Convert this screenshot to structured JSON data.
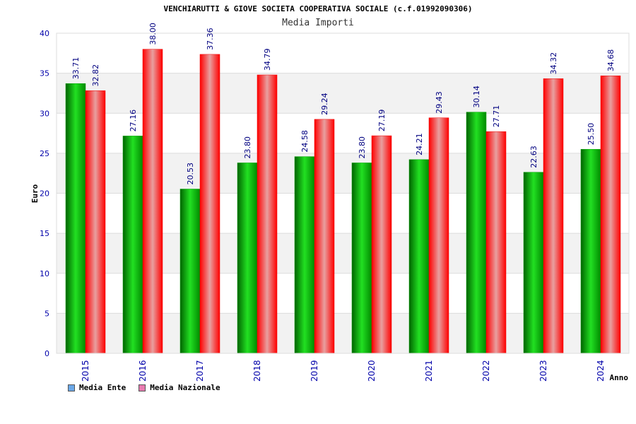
{
  "chart_data": {
    "type": "bar",
    "title": "VENCHIARUTTI & GIOVE SOCIETA COOPERATIVA SOCIALE (c.f.01992090306)",
    "subtitle": "Media Importi",
    "xlabel": "Anno",
    "ylabel": "Euro",
    "ylim": [
      0,
      40
    ],
    "yticks": [
      0,
      5,
      10,
      15,
      20,
      25,
      30,
      35,
      40
    ],
    "categories": [
      "2015",
      "2016",
      "2017",
      "2018",
      "2019",
      "2020",
      "2021",
      "2022",
      "2023",
      "2024"
    ],
    "series": [
      {
        "name": "Media Ente",
        "values": [
          33.71,
          27.16,
          20.53,
          23.8,
          24.58,
          23.8,
          24.21,
          30.14,
          22.63,
          25.5
        ],
        "labels": [
          "33.71",
          "27.16",
          "20.53",
          "23.80",
          "24.58",
          "23.80",
          "24.21",
          "30.14",
          "22.63",
          "25.50"
        ],
        "color": "#00b400",
        "legend_color": "#6aa8e8"
      },
      {
        "name": "Media Nazionale",
        "values": [
          32.82,
          38.0,
          37.36,
          34.79,
          29.24,
          27.19,
          29.43,
          27.71,
          34.32,
          34.68
        ],
        "labels": [
          "32.82",
          "38.00",
          "37.36",
          "34.79",
          "29.24",
          "27.19",
          "29.43",
          "27.71",
          "34.32",
          "34.68"
        ],
        "color": "#ff1a1a",
        "legend_color": "#e87ab0"
      }
    ],
    "legend_position": "bottom-left",
    "grid": true
  }
}
